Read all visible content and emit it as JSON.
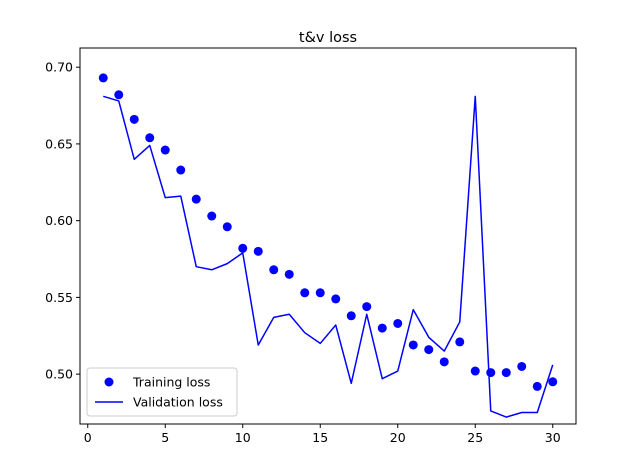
{
  "chart_data": {
    "type": "scatter",
    "title": "t&v loss",
    "xlabel": "",
    "ylabel": "",
    "xlim": [
      -0.5,
      31.5
    ],
    "ylim": [
      0.4675,
      0.7125
    ],
    "x_ticks": [
      0,
      5,
      10,
      15,
      20,
      25,
      30
    ],
    "y_ticks": [
      0.5,
      0.55,
      0.6,
      0.65,
      0.7
    ],
    "y_tick_labels": [
      "0.50",
      "0.55",
      "0.60",
      "0.65",
      "0.70"
    ],
    "grid": false,
    "legend_position": "lower-left",
    "x": [
      1,
      2,
      3,
      4,
      5,
      6,
      7,
      8,
      9,
      10,
      11,
      12,
      13,
      14,
      15,
      16,
      17,
      18,
      19,
      20,
      21,
      22,
      23,
      24,
      25,
      26,
      27,
      28,
      29,
      30
    ],
    "series": [
      {
        "name": "Training loss",
        "style": "markers",
        "color": "#0000ff",
        "values": [
          0.693,
          0.682,
          0.666,
          0.654,
          0.646,
          0.633,
          0.614,
          0.603,
          0.596,
          0.582,
          0.58,
          0.568,
          0.565,
          0.553,
          0.553,
          0.549,
          0.538,
          0.544,
          0.53,
          0.533,
          0.519,
          0.516,
          0.508,
          0.521,
          0.502,
          0.501,
          0.501,
          0.505,
          0.492,
          0.495
        ]
      },
      {
        "name": "Validation loss",
        "style": "line",
        "color": "#0000ff",
        "values": [
          0.681,
          0.678,
          0.64,
          0.649,
          0.615,
          0.616,
          0.57,
          0.568,
          0.572,
          0.579,
          0.519,
          0.537,
          0.539,
          0.527,
          0.52,
          0.532,
          0.494,
          0.539,
          0.497,
          0.502,
          0.542,
          0.524,
          0.515,
          0.534,
          0.681,
          0.476,
          0.472,
          0.475,
          0.475,
          0.506
        ]
      }
    ]
  }
}
